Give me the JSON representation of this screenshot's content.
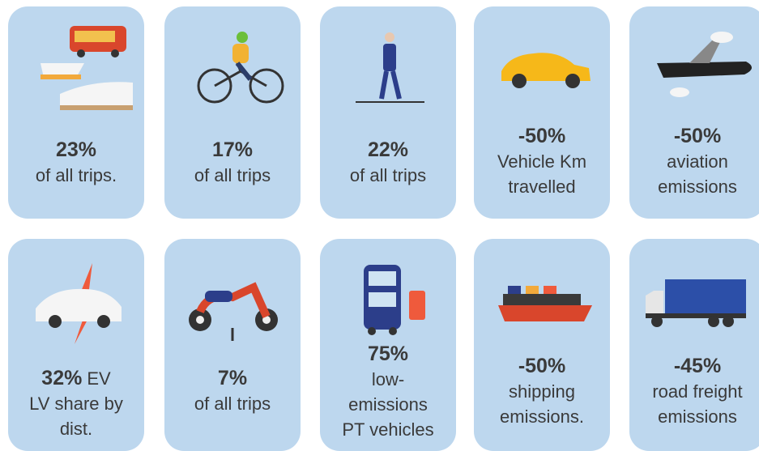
{
  "cards": [
    {
      "figure": "23%",
      "lines": [
        "of all trips."
      ]
    },
    {
      "figure": "17%",
      "lines": [
        "of all trips"
      ]
    },
    {
      "figure": "22%",
      "lines": [
        "of all trips"
      ]
    },
    {
      "figure": "-50%",
      "lines": [
        "Vehicle Km",
        "travelled"
      ]
    },
    {
      "figure": "-50%",
      "lines": [
        "aviation",
        "emissions"
      ]
    },
    {
      "figure": "32%",
      "lines": [
        "EV",
        "LV share by",
        "dist."
      ]
    },
    {
      "figure": "7%",
      "lines": [
        "of all trips"
      ]
    },
    {
      "figure": "75%",
      "lines": [
        "low-",
        "emissions",
        "PT vehicles"
      ]
    },
    {
      "figure": "-50%",
      "lines": [
        "shipping",
        "emissions."
      ]
    },
    {
      "figure": "-45%",
      "lines": [
        "road freight",
        "emissions"
      ]
    }
  ]
}
